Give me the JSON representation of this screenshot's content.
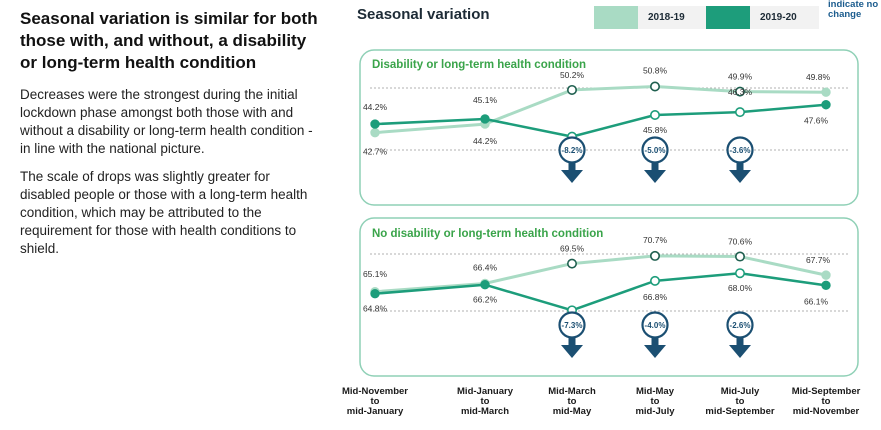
{
  "left": {
    "headline": "Seasonal variation is similar for both those with, and without, a disability or long-term health condition",
    "paragraphs": [
      "Decreases were the strongest during the initial lockdown phase amongst both those with and without a disability or long-term health condition - in line with the national picture.",
      "The scale of drops was slightly greater for disabled people or those with a long-term health condition, which may be attributed to the requirement for those with health conditions to shield."
    ]
  },
  "header": {
    "title": "Seasonal variation",
    "corner_note": "indicate no change"
  },
  "legend": [
    {
      "label": "2018-19",
      "color": "#a9dbc4"
    },
    {
      "label": "2019-20",
      "color": "#1d9d7b"
    }
  ],
  "colors": {
    "prior": "#a9dbc4",
    "current": "#1d9d7b",
    "badge": "#1b4f72",
    "panel_title": "#3aa44a"
  },
  "chart_data": [
    {
      "type": "line",
      "title": "Disability or long-term health condition",
      "categories": [
        "Mid-November to mid-January",
        "Mid-January to mid-March",
        "Mid-March to mid-May",
        "Mid-May to mid-July",
        "Mid-July to mid-September",
        "Mid-September to mid-November"
      ],
      "series": [
        {
          "name": "2018-19",
          "values": [
            42.7,
            44.2,
            50.2,
            50.8,
            49.9,
            49.8
          ],
          "labels": [
            "42.7%",
            "44.2%",
            "50.2%",
            "50.8%",
            "49.9%",
            "49.8%"
          ]
        },
        {
          "name": "2019-20",
          "values": [
            44.2,
            45.1,
            42.0,
            45.8,
            46.3,
            47.6
          ],
          "labels": [
            "44.2%",
            "45.1%",
            "42.0%",
            "45.8%",
            "46.3%",
            "47.6%"
          ]
        }
      ],
      "changes": [
        null,
        null,
        "-8.2%",
        "-5.0%",
        "-3.6%",
        null
      ]
    },
    {
      "type": "line",
      "title": "No disability or long-term health condition",
      "categories": [
        "Mid-November to mid-January",
        "Mid-January to mid-March",
        "Mid-March to mid-May",
        "Mid-May to mid-July",
        "Mid-July to mid-September",
        "Mid-September to mid-November"
      ],
      "series": [
        {
          "name": "2018-19",
          "values": [
            65.1,
            66.4,
            69.5,
            70.7,
            70.6,
            67.7
          ],
          "labels": [
            "65.1%",
            "66.4%",
            "69.5%",
            "70.7%",
            "70.6%",
            "67.7%"
          ]
        },
        {
          "name": "2019-20",
          "values": [
            64.8,
            66.2,
            62.2,
            66.8,
            68.0,
            66.1
          ],
          "labels": [
            "64.8%",
            "66.2%",
            "62.2%",
            "66.8%",
            "68.0%",
            "66.1%"
          ]
        }
      ],
      "changes": [
        null,
        null,
        "-7.3%",
        "-4.0%",
        "-2.6%",
        null
      ]
    }
  ],
  "x_labels": [
    [
      "Mid-November",
      "to",
      "mid-January"
    ],
    [
      "Mid-January",
      "to",
      "mid-March"
    ],
    [
      "Mid-March",
      "to",
      "mid-May"
    ],
    [
      "Mid-May",
      "to",
      "mid-July"
    ],
    [
      "Mid-July",
      "to",
      "mid-September"
    ],
    [
      "Mid-September",
      "to",
      "mid-November"
    ]
  ]
}
